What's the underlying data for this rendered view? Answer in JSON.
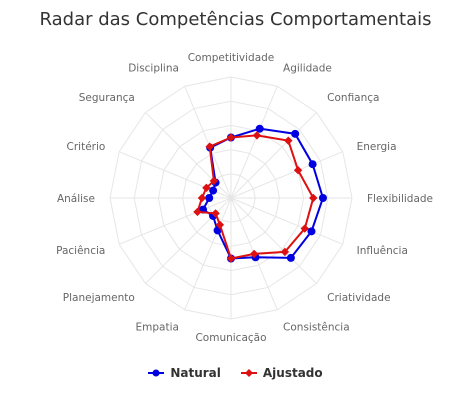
{
  "chart_data": {
    "type": "radar",
    "title": "Radar das Competências Comportamentais",
    "categories": [
      "Competitividade",
      "Agilidade",
      "Confiança",
      "Energia",
      "Flexibilidade",
      "Influência",
      "Criatividade",
      "Consistência",
      "Comunicação",
      "Empatia",
      "Planejamento",
      "Paciência",
      "Análise",
      "Critério",
      "Segurança",
      "Disciplina"
    ],
    "rmax": 100,
    "grid": true,
    "legend": "bottom",
    "series": [
      {
        "name": "Natural",
        "color": "#0000e0",
        "marker": "circle",
        "values": [
          50,
          62,
          75,
          73,
          76,
          72,
          70,
          53,
          50,
          29,
          21,
          25,
          18,
          16,
          18,
          45
        ]
      },
      {
        "name": "Ajustado",
        "color": "#dd1111",
        "marker": "diamond",
        "values": [
          50,
          56,
          67,
          60,
          68,
          66,
          63,
          50,
          50,
          24,
          18,
          30,
          24,
          22,
          20,
          46
        ]
      }
    ]
  }
}
